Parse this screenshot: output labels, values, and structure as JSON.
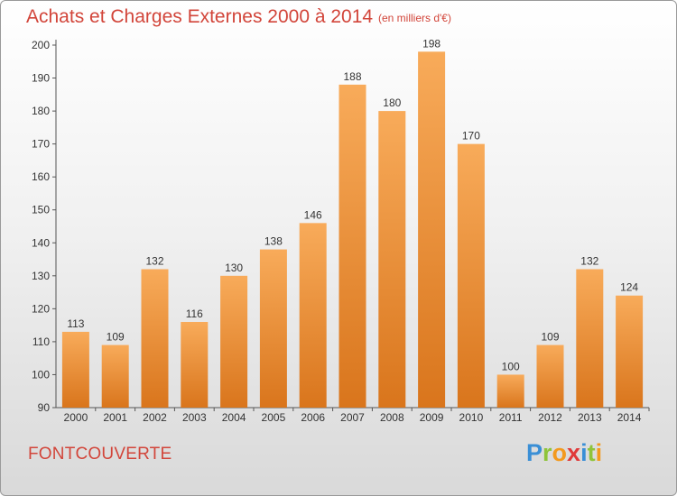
{
  "title": "Achats et Charges Externes 2000 à 2014",
  "unit_note": "(en milliers d'€)",
  "location": "FONTCOUVERTE",
  "logo": {
    "letters": [
      "P",
      "r",
      "o",
      "x",
      "i",
      "t",
      "i"
    ],
    "colors": [
      "#3a8fd6",
      "#8fc43a",
      "#f39a1e",
      "#e03a3a",
      "#3a8fd6",
      "#8fc43a",
      "#f39a1e"
    ]
  },
  "colors": {
    "bar_light": "#f8ab5a",
    "bar_dark": "#d9751c",
    "title": "#d2453a"
  },
  "chart_data": {
    "type": "bar",
    "title": "Achats et Charges Externes 2000 à 2014",
    "subtitle": "(en milliers d'€)",
    "categories": [
      "2000",
      "2001",
      "2002",
      "2003",
      "2004",
      "2005",
      "2006",
      "2007",
      "2008",
      "2009",
      "2010",
      "2011",
      "2012",
      "2013",
      "2014"
    ],
    "values": [
      113,
      109,
      132,
      116,
      130,
      138,
      146,
      188,
      180,
      198,
      170,
      100,
      109,
      132,
      124
    ],
    "data_labels": [
      "113",
      "109",
      "132",
      "116",
      "130",
      "138",
      "146",
      "188",
      "180",
      "198",
      "170",
      "100",
      "109",
      "132",
      "124"
    ],
    "ylim": [
      90,
      200
    ],
    "yticks": [
      90,
      100,
      110,
      120,
      130,
      140,
      150,
      160,
      170,
      180,
      190,
      200
    ],
    "ytick_labels": [
      "90",
      "100",
      "110",
      "120",
      "130",
      "140",
      "150",
      "160",
      "170",
      "180",
      "190",
      "200"
    ],
    "grid": false,
    "legend": "none"
  }
}
